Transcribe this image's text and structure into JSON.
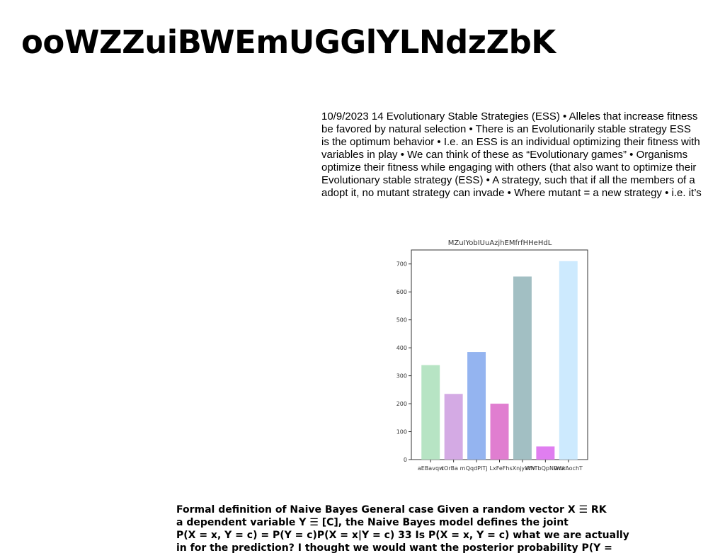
{
  "document": {
    "title": "ooWZZuiBWEmUGGlYLNdzZbK",
    "body_lines": [
      "10/9/2023 14 Evolutionary Stable Strategies (ESS) • Alleles that increase fitness",
      "be favored by natural selection • There is an Evolutionarily stable strategy ESS",
      "is the optimum behavior • I.e. an ESS is an individual optimizing their fitness with",
      "variables in play • We can think of these as “Evolutionary games” • Organisms",
      "optimize their fitness while engaging with others (that also want to optimize their",
      "Evolutionary stable strategy (ESS) • A strategy, such that if all the members of a",
      "adopt it, no mutant strategy can invade • Where mutant =  a new strategy • i.e. it’s"
    ],
    "footer_lines": [
      "Formal definition of Naive Bayes General case Given a random vector X ☰ RK",
      "a dependent variable Y ☰ [C], the Naive Bayes model defines the joint",
      "P(X = x, Y = c) = P(Y = c)P(X = x|Y = c) 33 Is P(X = x, Y = c) what we are actually",
      "in for the prediction? I thought we would want the posterior probability P(Y ="
    ]
  },
  "chart_data": {
    "type": "bar",
    "title": "MZuIYobIUuAzjhEMfrfHHeHdL",
    "categories": [
      "aEBavqw",
      "tOrBa m",
      "QqdPITj",
      "LxFeFh",
      "sXnjyaYV",
      "WhTbQpNDWr",
      "wcxAochT"
    ],
    "values": [
      338,
      235,
      385,
      200,
      655,
      47,
      710
    ],
    "colors": [
      "#b7e4c4",
      "#d4aae4",
      "#94b4f0",
      "#e07ed0",
      "#a2bfc3",
      "#e07ef0",
      "#cdeafe"
    ],
    "ylim": [
      0,
      750
    ],
    "yticks": [
      0,
      100,
      200,
      300,
      400,
      500,
      600,
      700
    ],
    "xlabel": "",
    "ylabel": "",
    "grid": false
  }
}
